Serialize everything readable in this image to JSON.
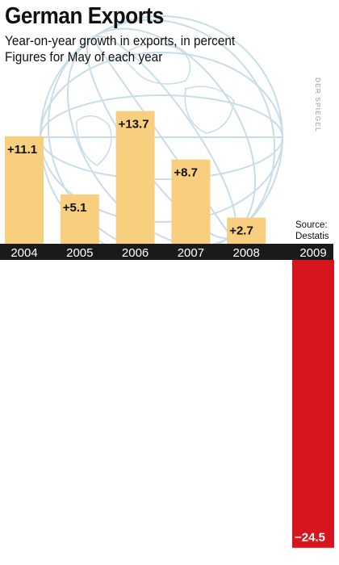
{
  "title": "German Exports",
  "subtitle_line1": "Year-on-year growth in exports, in percent",
  "subtitle_line2": "Figures for May of each year",
  "watermark": "DER SPIEGEL",
  "source_label": "Source:",
  "source_name": "Destatis",
  "colors": {
    "positive_bar": "#f8cf7e",
    "negative_bar": "#d6151e",
    "axis_band": "#1a1a1a",
    "globe_lines": "#c8dde8"
  },
  "chart_data": {
    "type": "bar",
    "title": "German Exports",
    "subtitle": "Year-on-year growth in exports, in percent",
    "categories": [
      "2004",
      "2005",
      "2006",
      "2007",
      "2008",
      "2009"
    ],
    "values": [
      11.1,
      5.1,
      13.7,
      8.7,
      2.7,
      -24.5
    ],
    "labels": [
      "+11.1",
      "+5.1",
      "+13.7",
      "+8.7",
      "+2.7",
      "−24.5"
    ],
    "xlabel": "",
    "ylabel": "",
    "grid": false,
    "legend": "none"
  }
}
